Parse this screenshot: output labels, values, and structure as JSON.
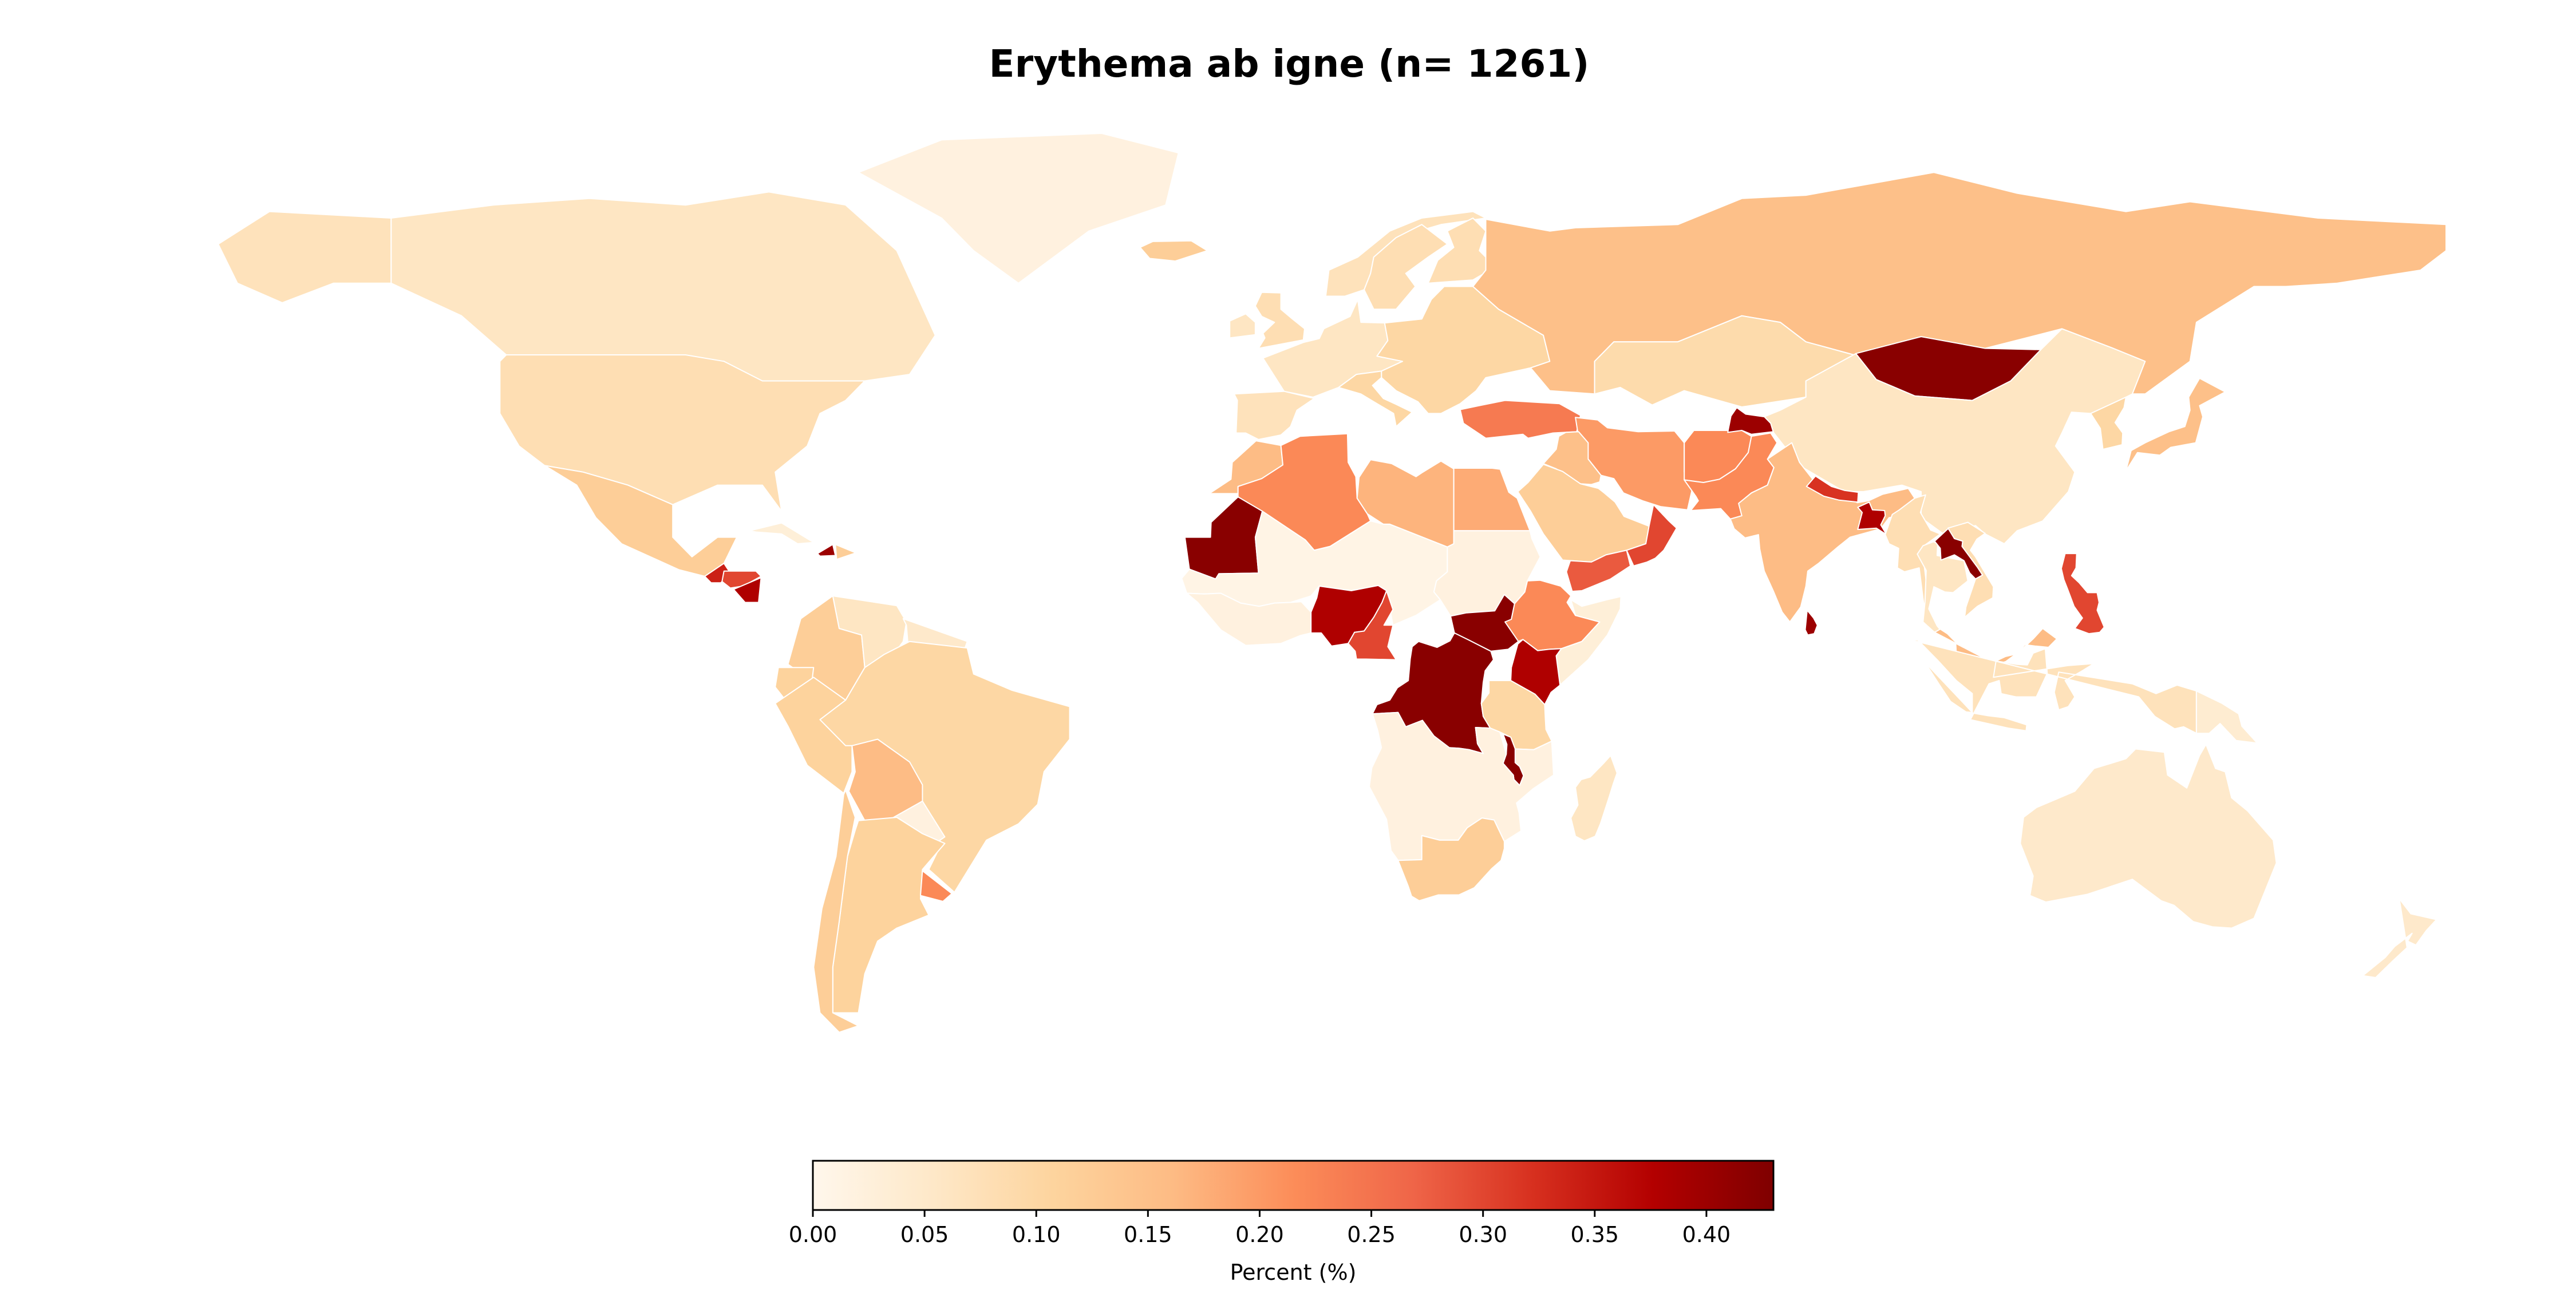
{
  "chart_data": {
    "type": "choropleth",
    "title": "Erythema ab igne (n= 1261)",
    "colorbar": {
      "label": "Percent (%)",
      "range": [
        0,
        0.43
      ],
      "ticks": [
        "0.00",
        "0.05",
        "0.10",
        "0.15",
        "0.20",
        "0.25",
        "0.30",
        "0.35",
        "0.40"
      ],
      "colormap": "OrRd",
      "colors": [
        "#fff7ec",
        "#fee8c8",
        "#fdd49e",
        "#fdbb84",
        "#fc8d59",
        "#ef6548",
        "#d7301f",
        "#b30000",
        "#7f0000"
      ],
      "orientation": "horizontal",
      "placement": "bottom"
    },
    "regions": [
      {
        "name": "Canada",
        "value": 0.06
      },
      {
        "name": "Alaska",
        "value": 0.07
      },
      {
        "name": "United States",
        "value": 0.08
      },
      {
        "name": "Greenland",
        "value": 0.02
      },
      {
        "name": "Mexico",
        "value": 0.12
      },
      {
        "name": "Guatemala",
        "value": 0.34
      },
      {
        "name": "Honduras",
        "value": 0.3
      },
      {
        "name": "Nicaragua",
        "value": 0.38
      },
      {
        "name": "Cuba",
        "value": 0.03
      },
      {
        "name": "Haiti",
        "value": 0.4
      },
      {
        "name": "Dominican Republic",
        "value": 0.12
      },
      {
        "name": "Colombia",
        "value": 0.12
      },
      {
        "name": "Venezuela",
        "value": 0.06
      },
      {
        "name": "Guyana",
        "value": 0.05
      },
      {
        "name": "Ecuador",
        "value": 0.11
      },
      {
        "name": "Peru",
        "value": 0.11
      },
      {
        "name": "Brazil",
        "value": 0.1
      },
      {
        "name": "Bolivia",
        "value": 0.16
      },
      {
        "name": "Paraguay",
        "value": 0.02
      },
      {
        "name": "Argentina",
        "value": 0.11
      },
      {
        "name": "Chile",
        "value": 0.12
      },
      {
        "name": "Uruguay",
        "value": 0.22
      },
      {
        "name": "Iceland",
        "value": 0.12
      },
      {
        "name": "Norway",
        "value": 0.07
      },
      {
        "name": "Sweden",
        "value": 0.08
      },
      {
        "name": "Finland",
        "value": 0.08
      },
      {
        "name": "United Kingdom",
        "value": 0.08
      },
      {
        "name": "Ireland",
        "value": 0.06
      },
      {
        "name": "Western Europe",
        "value": 0.06
      },
      {
        "name": "Eastern Europe",
        "value": 0.1
      },
      {
        "name": "Spain",
        "value": 0.07
      },
      {
        "name": "Italy",
        "value": 0.1
      },
      {
        "name": "Russia",
        "value": 0.15
      },
      {
        "name": "Kazakhstan",
        "value": 0.09
      },
      {
        "name": "Mongolia",
        "value": 0.42
      },
      {
        "name": "China",
        "value": 0.06
      },
      {
        "name": "Japan",
        "value": 0.15
      },
      {
        "name": "Korea",
        "value": 0.1
      },
      {
        "name": "Turkey",
        "value": 0.24
      },
      {
        "name": "Iran",
        "value": 0.2
      },
      {
        "name": "Iraq",
        "value": 0.15
      },
      {
        "name": "Saudi Arabia",
        "value": 0.12
      },
      {
        "name": "Yemen",
        "value": 0.28
      },
      {
        "name": "Oman",
        "value": 0.3
      },
      {
        "name": "Afghanistan",
        "value": 0.22
      },
      {
        "name": "Pakistan",
        "value": 0.22
      },
      {
        "name": "Tajikistan",
        "value": 0.4
      },
      {
        "name": "India",
        "value": 0.16
      },
      {
        "name": "Nepal",
        "value": 0.32
      },
      {
        "name": "Bangladesh",
        "value": 0.38
      },
      {
        "name": "Sri Lanka",
        "value": 0.4
      },
      {
        "name": "Myanmar",
        "value": 0.08
      },
      {
        "name": "Thailand",
        "value": 0.06
      },
      {
        "name": "Laos",
        "value": 0.42
      },
      {
        "name": "Vietnam",
        "value": 0.08
      },
      {
        "name": "Philippines",
        "value": 0.3
      },
      {
        "name": "Malaysia",
        "value": 0.16
      },
      {
        "name": "Indonesia",
        "value": 0.07
      },
      {
        "name": "Papua New Guinea",
        "value": 0.04
      },
      {
        "name": "Australia",
        "value": 0.05
      },
      {
        "name": "New Zealand",
        "value": 0.05
      },
      {
        "name": "Morocco",
        "value": 0.16
      },
      {
        "name": "Algeria",
        "value": 0.22
      },
      {
        "name": "Libya",
        "value": 0.17
      },
      {
        "name": "Egypt",
        "value": 0.18
      },
      {
        "name": "Mauritania",
        "value": 0.42
      },
      {
        "name": "Sahel",
        "value": 0.01
      },
      {
        "name": "West Africa",
        "value": 0.02
      },
      {
        "name": "Nigeria",
        "value": 0.38
      },
      {
        "name": "Cameroon",
        "value": 0.3
      },
      {
        "name": "Sudan",
        "value": 0.02
      },
      {
        "name": "South Sudan",
        "value": 0.42
      },
      {
        "name": "Ethiopia",
        "value": 0.22
      },
      {
        "name": "Somalia",
        "value": 0.03
      },
      {
        "name": "Kenya",
        "value": 0.38
      },
      {
        "name": "DR Congo",
        "value": 0.42
      },
      {
        "name": "Tanzania",
        "value": 0.1
      },
      {
        "name": "Malawi",
        "value": 0.42
      },
      {
        "name": "Southern Africa",
        "value": 0.02
      },
      {
        "name": "Madagascar",
        "value": 0.06
      },
      {
        "name": "South Africa",
        "value": 0.12
      }
    ]
  }
}
